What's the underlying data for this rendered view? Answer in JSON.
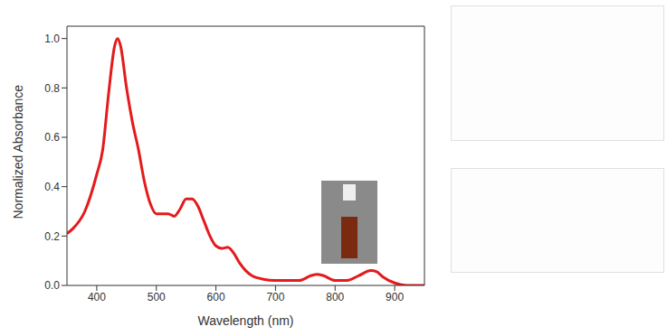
{
  "chart_data": {
    "type": "line",
    "xlabel": "Wavelength (nm)",
    "ylabel": "Normalized Absorbance",
    "x": [
      350,
      360,
      380,
      400,
      410,
      420,
      430,
      435,
      440,
      450,
      460,
      470,
      480,
      490,
      500,
      510,
      520,
      530,
      540,
      550,
      560,
      570,
      580,
      590,
      600,
      610,
      620,
      630,
      640,
      650,
      660,
      680,
      700,
      720,
      740,
      760,
      770,
      780,
      800,
      820,
      840,
      860,
      870,
      880,
      900,
      920,
      950
    ],
    "values": [
      0.21,
      0.23,
      0.3,
      0.45,
      0.55,
      0.78,
      0.97,
      1.0,
      0.97,
      0.8,
      0.66,
      0.55,
      0.42,
      0.33,
      0.29,
      0.29,
      0.29,
      0.28,
      0.31,
      0.35,
      0.35,
      0.32,
      0.26,
      0.2,
      0.16,
      0.15,
      0.155,
      0.13,
      0.09,
      0.06,
      0.04,
      0.025,
      0.02,
      0.02,
      0.02,
      0.04,
      0.045,
      0.04,
      0.02,
      0.02,
      0.04,
      0.06,
      0.055,
      0.035,
      0.01,
      0.0,
      0.0
    ],
    "color": "#e41a1c",
    "xlim": [
      350,
      950
    ],
    "ylim": [
      0,
      1.05
    ],
    "xticks": [
      400,
      500,
      600,
      700,
      800,
      900
    ],
    "yticks": [
      {
        "value": 0,
        "label": "0.0"
      },
      0.2,
      0.4,
      0.6,
      0.8,
      {
        "value": 1,
        "label": "1.0"
      }
    ],
    "grid": false
  }
}
